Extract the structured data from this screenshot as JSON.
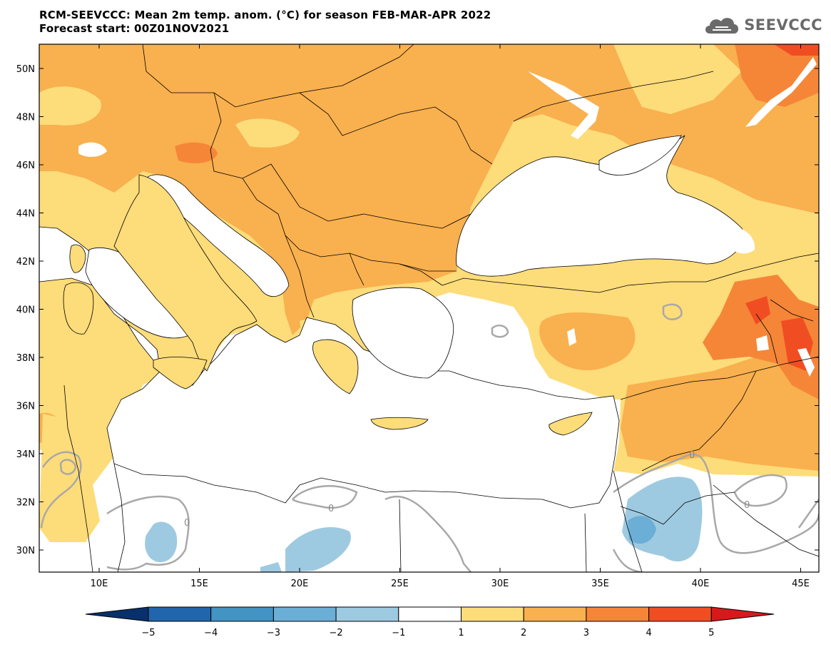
{
  "header": {
    "title_line1": "RCM-SEEVCCC: Mean 2m temp. anom. (°C) for season FEB-MAR-APR 2022",
    "title_line2": "Forecast start: 00Z01NOV2021"
  },
  "logo": {
    "text": "SEEVCCC",
    "icon": "cloud-icon"
  },
  "map": {
    "lat_labels": [
      "50N",
      "48N",
      "46N",
      "44N",
      "42N",
      "40N",
      "38N",
      "36N",
      "34N",
      "32N",
      "30N"
    ],
    "lon_labels": [
      "10E",
      "15E",
      "20E",
      "25E",
      "30E",
      "35E",
      "40E",
      "45E"
    ],
    "contour_labels": [
      "0",
      "0",
      "0",
      "0",
      "0"
    ]
  },
  "colorbar": {
    "tick_labels": [
      "−5",
      "−4",
      "−3",
      "−2",
      "−1",
      "1",
      "2",
      "3",
      "4",
      "5"
    ],
    "colors": [
      "#08306b",
      "#2166ac",
      "#4393c3",
      "#6baed6",
      "#9ecae1",
      "#ffffff",
      "#fddc7a",
      "#f9b04e",
      "#f58638",
      "#f04e22",
      "#d7191c"
    ]
  }
}
